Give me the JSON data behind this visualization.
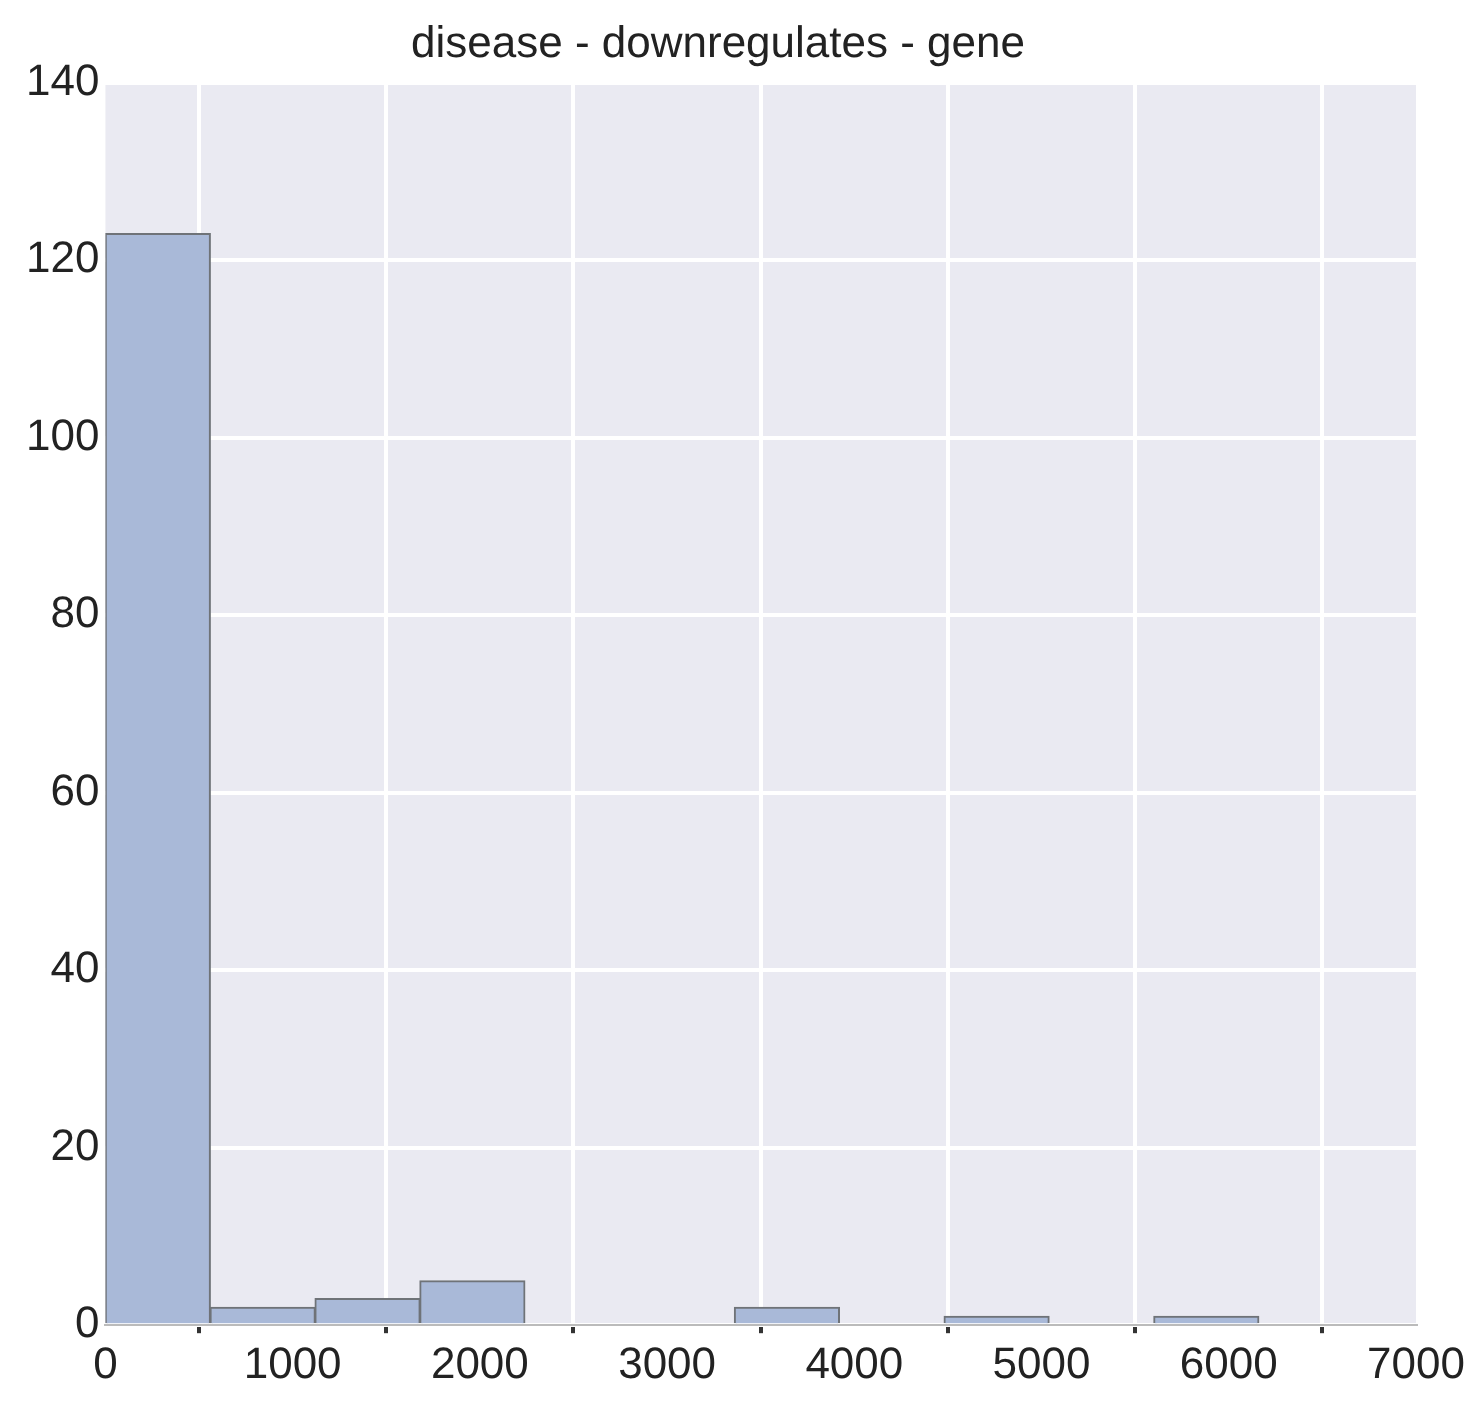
{
  "chart_data": {
    "type": "histogram",
    "title": "disease - downregulates - gene",
    "bins": [
      0,
      560,
      1120,
      1680,
      2240,
      2800,
      3360,
      3920,
      4480,
      5040,
      5600,
      6160
    ],
    "values": [
      123,
      2,
      3,
      5,
      0,
      0,
      2,
      0,
      1,
      0,
      1
    ],
    "color": "#a9b9d8",
    "xlim": [
      0,
      7000
    ],
    "xticks": [
      0,
      1000,
      2000,
      3000,
      4000,
      5000,
      6000,
      7000
    ],
    "ylim": [
      0,
      140
    ],
    "yticks": [
      0,
      20,
      40,
      60,
      80,
      100,
      120,
      140
    ],
    "grid": true
  }
}
